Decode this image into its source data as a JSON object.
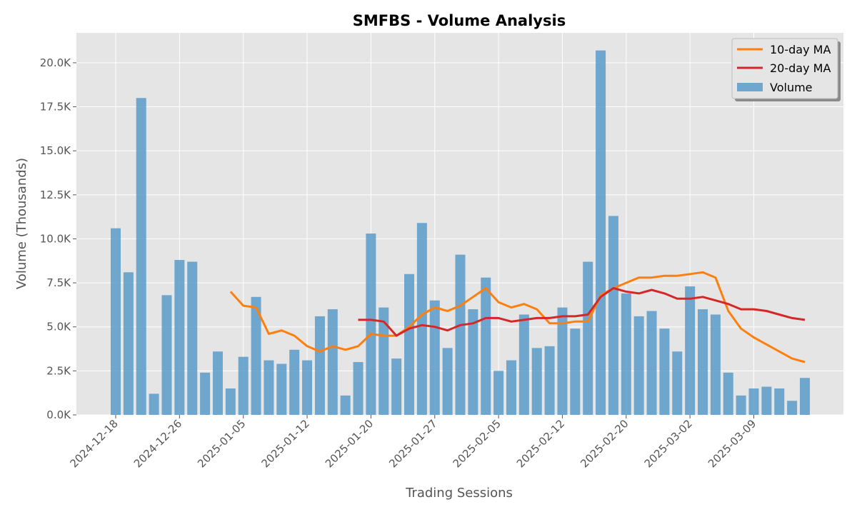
{
  "chart_data": {
    "type": "bar",
    "title": "SMFBS - Volume Analysis",
    "xlabel": "Trading Sessions",
    "ylabel": "Volume (Thousands)",
    "ylim": [
      0,
      21.7
    ],
    "yticks": [
      0,
      2.5,
      5.0,
      7.5,
      10.0,
      12.5,
      15.0,
      17.5,
      20.0
    ],
    "ytick_labels": [
      "0.0K",
      "2.5K",
      "5.0K",
      "7.5K",
      "10.0K",
      "12.5K",
      "15.0K",
      "17.5K",
      "20.0K"
    ],
    "xtick_labels": [
      "2024-12-18",
      "2024-12-26",
      "2025-01-05",
      "2025-01-12",
      "2025-01-20",
      "2025-01-27",
      "2025-02-05",
      "2025-02-12",
      "2025-02-20",
      "2025-03-02",
      "2025-03-09"
    ],
    "xtick_positions": [
      0,
      5,
      10,
      15,
      20,
      25,
      30,
      35,
      40,
      45,
      50
    ],
    "grid": true,
    "legend_position": "top-right",
    "categories_count": 55,
    "series": [
      {
        "name": "Volume",
        "kind": "bar",
        "color": "#5b9bc9",
        "values": [
          10.6,
          8.1,
          18.0,
          1.2,
          6.8,
          8.8,
          8.7,
          2.4,
          3.6,
          1.5,
          3.3,
          6.7,
          3.1,
          2.9,
          3.7,
          3.1,
          5.6,
          6.0,
          1.1,
          3.0,
          10.3,
          6.1,
          3.2,
          8.0,
          10.9,
          6.5,
          3.8,
          9.1,
          6.0,
          7.8,
          2.5,
          3.1,
          5.7,
          3.8,
          3.9,
          6.1,
          4.9,
          8.7,
          20.7,
          11.3,
          6.9,
          5.6,
          5.9,
          4.9,
          3.6,
          7.3,
          6.0,
          5.7,
          2.4,
          1.1,
          1.5,
          1.6,
          1.5,
          0.8,
          2.1
        ]
      },
      {
        "name": "10-day MA",
        "kind": "line",
        "color": "#ff7f0e",
        "values": [
          null,
          null,
          null,
          null,
          null,
          null,
          null,
          null,
          null,
          7.0,
          6.2,
          6.1,
          4.6,
          4.8,
          4.5,
          3.9,
          3.6,
          3.9,
          3.7,
          3.9,
          4.6,
          4.5,
          4.5,
          5.0,
          5.7,
          6.1,
          5.9,
          6.2,
          6.7,
          7.2,
          6.4,
          6.1,
          6.3,
          6.0,
          5.2,
          5.2,
          5.3,
          5.3,
          6.8,
          7.2,
          7.5,
          7.8,
          7.8,
          7.9,
          7.9,
          8.0,
          8.1,
          7.8,
          5.9,
          4.9,
          4.4,
          4.0,
          3.6,
          3.2,
          3.0
        ]
      },
      {
        "name": "20-day MA",
        "kind": "line",
        "color": "#d62728",
        "values": [
          null,
          null,
          null,
          null,
          null,
          null,
          null,
          null,
          null,
          null,
          null,
          null,
          null,
          null,
          null,
          null,
          null,
          null,
          null,
          5.4,
          5.4,
          5.3,
          4.5,
          4.9,
          5.1,
          5.0,
          4.8,
          5.1,
          5.2,
          5.5,
          5.5,
          5.3,
          5.4,
          5.5,
          5.5,
          5.6,
          5.6,
          5.7,
          6.7,
          7.2,
          7.0,
          6.9,
          7.1,
          6.9,
          6.6,
          6.6,
          6.7,
          6.5,
          6.3,
          6.0,
          6.0,
          5.9,
          5.7,
          5.5,
          5.4
        ]
      }
    ]
  }
}
